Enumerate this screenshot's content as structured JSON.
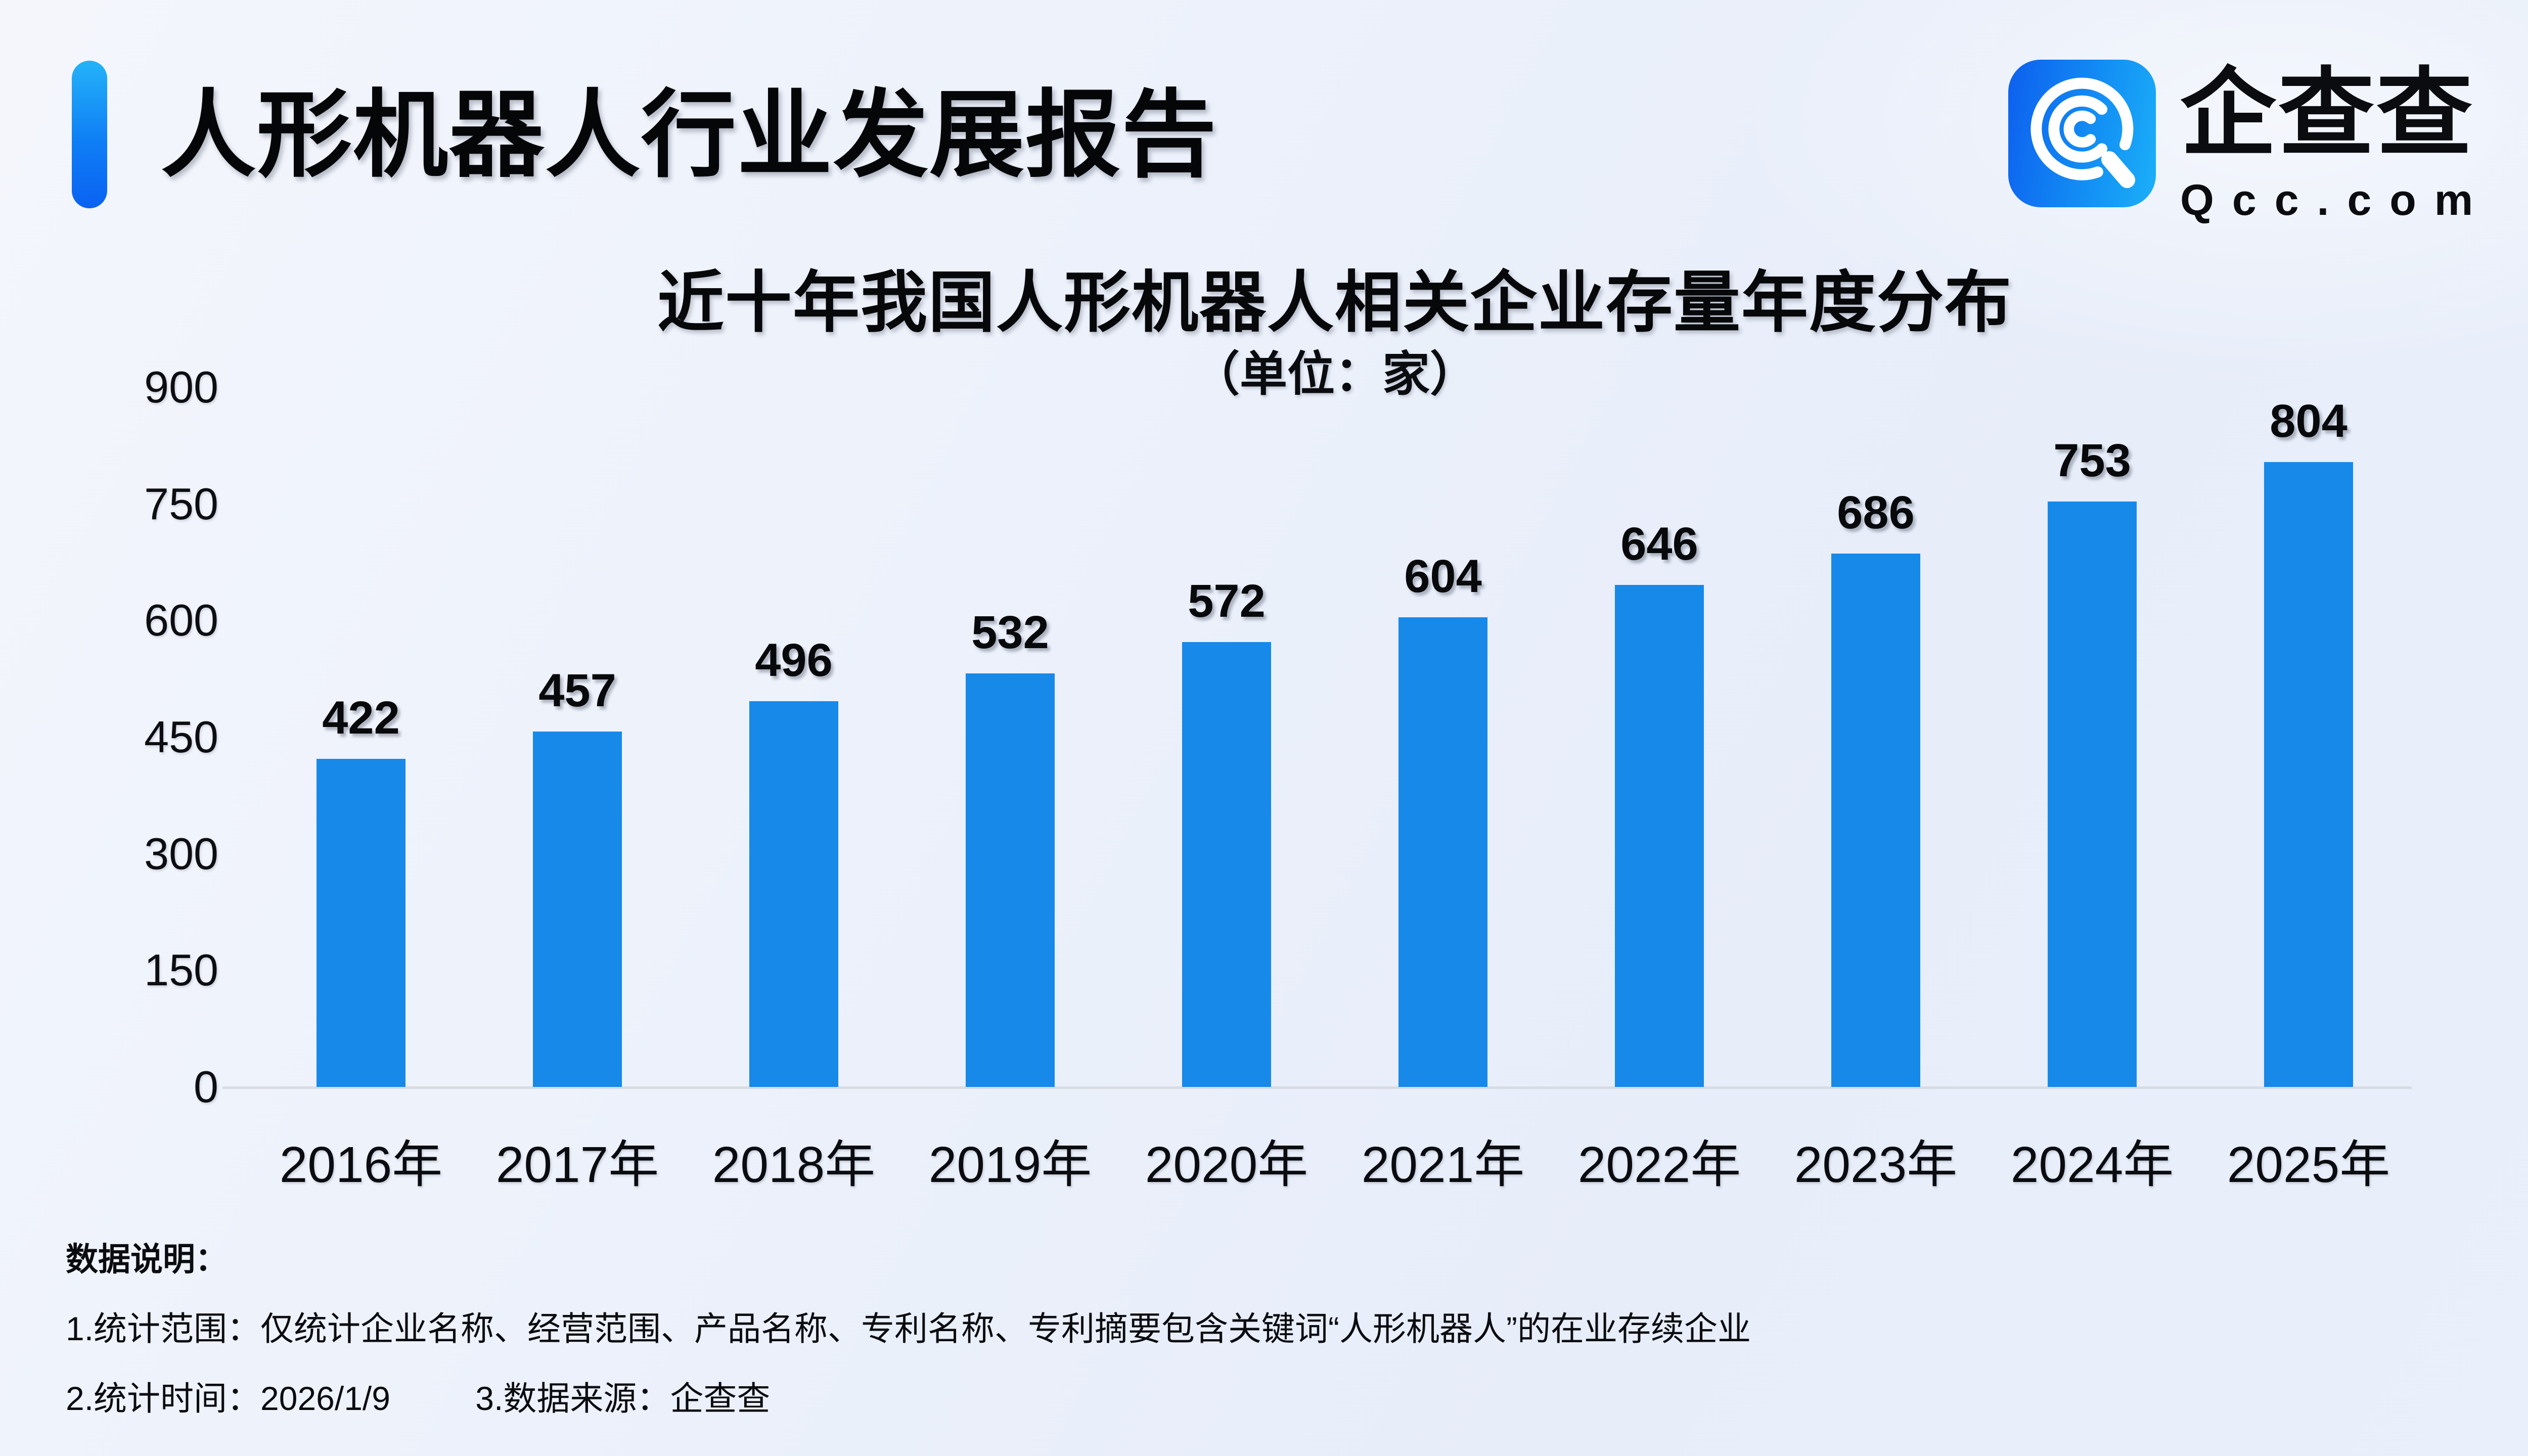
{
  "header": {
    "title": "人形机器人行业发展报告"
  },
  "logo": {
    "name": "企查查",
    "domain": "Qcc.com"
  },
  "chart_data": {
    "type": "bar",
    "title": "近十年我国人形机器人相关企业存量年度分布",
    "subtitle": "（单位：家）",
    "categories": [
      "2016年",
      "2017年",
      "2018年",
      "2019年",
      "2020年",
      "2021年",
      "2022年",
      "2023年",
      "2024年",
      "2025年"
    ],
    "values": [
      422,
      457,
      496,
      532,
      572,
      604,
      646,
      686,
      753,
      804
    ],
    "yticks": [
      0,
      150,
      300,
      450,
      600,
      750,
      900
    ],
    "ylim": [
      0,
      900
    ],
    "bar_color": "#1789e9",
    "grid": false,
    "legend": false,
    "value_labels": "above-bars"
  },
  "notes": {
    "heading": "数据说明：",
    "line1": "1.统计范围：仅统计企业名称、经营范围、产品名称、专利名称、专利摘要包含关键词“人形机器人”的在业存续企业",
    "line2_part1": "2.统计时间：2026/1/9",
    "line2_part2": "3.数据来源：企查查"
  }
}
